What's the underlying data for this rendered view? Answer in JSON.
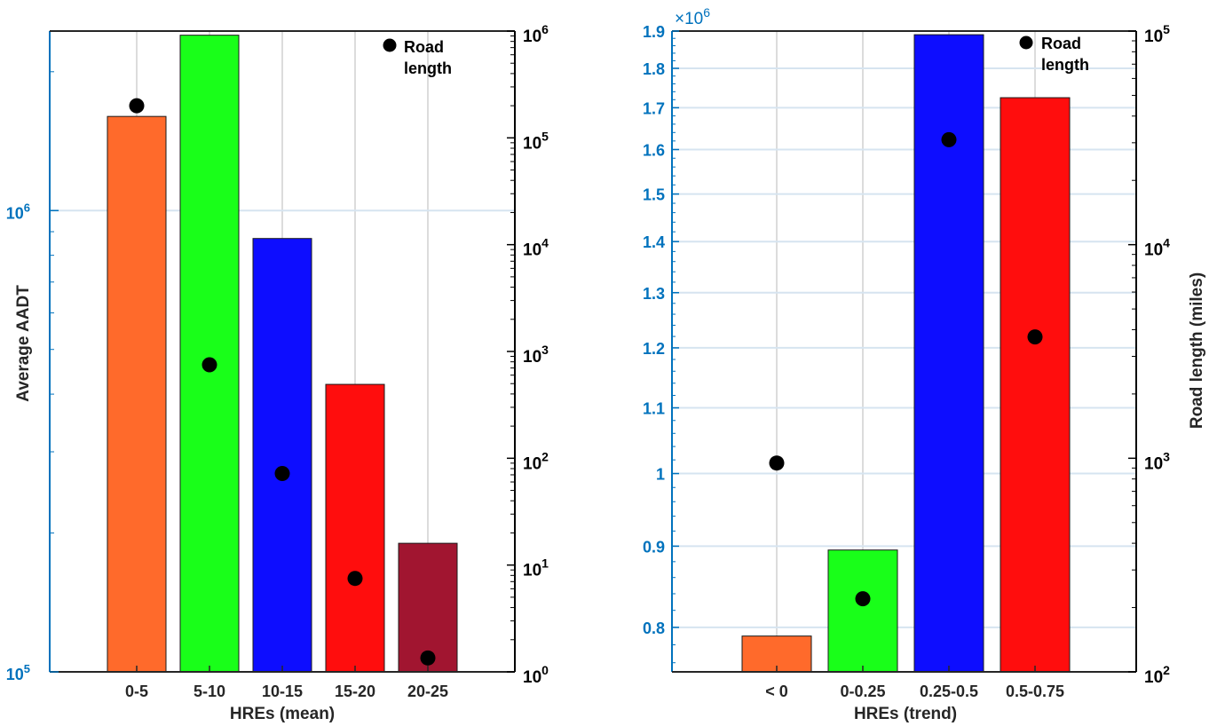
{
  "chart_data": [
    {
      "type": "bar",
      "title": "",
      "xlabel": "HREs (mean)",
      "ylabel": "Average AADT",
      "y2label": "",
      "categories": [
        "0-5",
        "5-10",
        "10-15",
        "15-20",
        "20-25"
      ],
      "bar_colors": [
        "#ff6a2b",
        "#19ff19",
        "#0d0dff",
        "#ff0d0d",
        "#a11530"
      ],
      "series": [
        {
          "name": "",
          "axis": "left",
          "kind": "bar",
          "values": [
            1600000,
            2400000,
            870000,
            420000,
            190000
          ]
        },
        {
          "name": "Road length",
          "axis": "right",
          "kind": "scatter",
          "values": [
            200000,
            750,
            72,
            7.5,
            1.35
          ]
        }
      ],
      "ylim": [
        100000,
        2450000
      ],
      "yscale": "log",
      "y2lim": [
        1,
        1000000
      ],
      "y2scale": "log",
      "left_ticks": [
        {
          "label": "10",
          "exp": "5"
        },
        {
          "label": "10",
          "exp": "6"
        }
      ],
      "right_ticks": [
        {
          "label": "10",
          "exp": "0"
        },
        {
          "label": "10",
          "exp": "1"
        },
        {
          "label": "10",
          "exp": "2"
        },
        {
          "label": "10",
          "exp": "3"
        },
        {
          "label": "10",
          "exp": "4"
        },
        {
          "label": "10",
          "exp": "5"
        },
        {
          "label": "10",
          "exp": "6"
        }
      ],
      "legend": {
        "entries": [
          "Road",
          "length"
        ],
        "placement": "top-right"
      },
      "grid": true,
      "left_axis_color": "#0072bd"
    },
    {
      "type": "bar",
      "title": "",
      "xlabel": "HREs (trend)",
      "ylabel": "",
      "y2label": "Road length (miles)",
      "categories": [
        "< 0",
        "0-0.25",
        "0.25-0.5",
        "0.5-0.75"
      ],
      "bar_colors": [
        "#ff6a2b",
        "#19ff19",
        "#0d0dff",
        "#ff0d0d"
      ],
      "series": [
        {
          "name": "",
          "axis": "left",
          "kind": "bar",
          "values": [
            790000,
            895000,
            1890000,
            1725000
          ]
        },
        {
          "name": "Road length",
          "axis": "right",
          "kind": "scatter",
          "values": [
            950,
            220,
            31000,
            3700
          ]
        }
      ],
      "ylim": [
        750000,
        1900000
      ],
      "yscale": "log",
      "y2lim": [
        100,
        100000
      ],
      "y2scale": "log",
      "left_multiplier": {
        "label": "×10",
        "exp": "6"
      },
      "left_ticks": [
        {
          "value": 0.8,
          "label": "0.8"
        },
        {
          "value": 0.9,
          "label": "0.9"
        },
        {
          "value": 1.0,
          "label": "1"
        },
        {
          "value": 1.1,
          "label": "1.1"
        },
        {
          "value": 1.2,
          "label": "1.2"
        },
        {
          "value": 1.3,
          "label": "1.3"
        },
        {
          "value": 1.4,
          "label": "1.4"
        },
        {
          "value": 1.5,
          "label": "1.5"
        },
        {
          "value": 1.6,
          "label": "1.6"
        },
        {
          "value": 1.7,
          "label": "1.7"
        },
        {
          "value": 1.8,
          "label": "1.8"
        },
        {
          "value": 1.9,
          "label": "1.9"
        }
      ],
      "right_ticks": [
        {
          "label": "10",
          "exp": "2"
        },
        {
          "label": "10",
          "exp": "3"
        },
        {
          "label": "10",
          "exp": "4"
        },
        {
          "label": "10",
          "exp": "5"
        }
      ],
      "legend": {
        "entries": [
          "Road",
          "length"
        ],
        "placement": "top-right"
      },
      "grid": true,
      "left_axis_color": "#0072bd"
    }
  ]
}
